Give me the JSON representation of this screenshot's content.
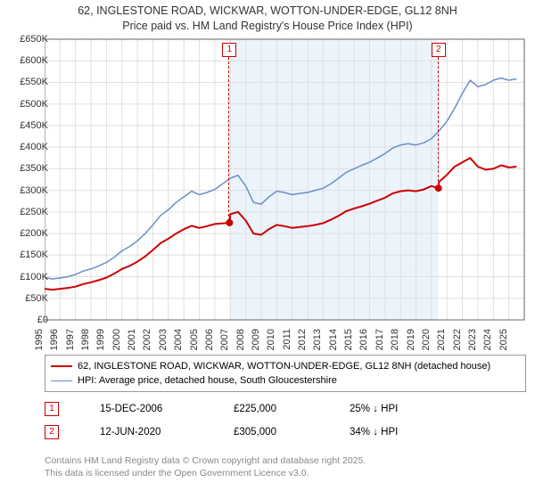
{
  "title": {
    "line1": "62, INGLESTONE ROAD, WICKWAR, WOTTON-UNDER-EDGE, GL12 8NH",
    "line2": "Price paid vs. HM Land Registry's House Price Index (HPI)"
  },
  "chart": {
    "type": "line",
    "background_color": "#ffffff",
    "grid_color": "#e0e0e0",
    "axis_color": "#666666",
    "shaded_region": {
      "x_start": 2006.95,
      "x_end": 2020.45,
      "fill": "#e6f0fa",
      "opacity": 0.8
    },
    "xlim": [
      1995,
      2026
    ],
    "ylim": [
      0,
      650000
    ],
    "xticks": [
      1995,
      1996,
      1997,
      1998,
      1999,
      2000,
      2001,
      2002,
      2003,
      2004,
      2005,
      2006,
      2007,
      2008,
      2009,
      2010,
      2011,
      2012,
      2013,
      2014,
      2015,
      2016,
      2017,
      2018,
      2019,
      2020,
      2021,
      2022,
      2023,
      2024,
      2025
    ],
    "yticks": [
      0,
      50000,
      100000,
      150000,
      200000,
      250000,
      300000,
      350000,
      400000,
      450000,
      500000,
      550000,
      600000,
      650000
    ],
    "ytick_labels": [
      "£0",
      "£50K",
      "£100K",
      "£150K",
      "£200K",
      "£250K",
      "£300K",
      "£350K",
      "£400K",
      "£450K",
      "£500K",
      "£550K",
      "£600K",
      "£650K"
    ],
    "tick_fontsize": 11,
    "series": [
      {
        "name": "hpi",
        "color": "#6a8fc9",
        "width": 1.5,
        "data": [
          [
            1995,
            98000
          ],
          [
            1995.5,
            95000
          ],
          [
            1996,
            97000
          ],
          [
            1996.5,
            100000
          ],
          [
            1997,
            105000
          ],
          [
            1997.5,
            113000
          ],
          [
            1998,
            118000
          ],
          [
            1998.5,
            125000
          ],
          [
            1999,
            133000
          ],
          [
            1999.5,
            145000
          ],
          [
            2000,
            160000
          ],
          [
            2000.5,
            170000
          ],
          [
            2001,
            183000
          ],
          [
            2001.5,
            200000
          ],
          [
            2002,
            220000
          ],
          [
            2002.5,
            242000
          ],
          [
            2003,
            255000
          ],
          [
            2003.5,
            272000
          ],
          [
            2004,
            285000
          ],
          [
            2004.5,
            298000
          ],
          [
            2005,
            290000
          ],
          [
            2005.5,
            295000
          ],
          [
            2006,
            302000
          ],
          [
            2006.5,
            315000
          ],
          [
            2007,
            328000
          ],
          [
            2007.5,
            335000
          ],
          [
            2008,
            310000
          ],
          [
            2008.5,
            272000
          ],
          [
            2009,
            268000
          ],
          [
            2009.5,
            285000
          ],
          [
            2010,
            298000
          ],
          [
            2010.5,
            295000
          ],
          [
            2011,
            290000
          ],
          [
            2011.5,
            293000
          ],
          [
            2012,
            295000
          ],
          [
            2012.5,
            300000
          ],
          [
            2013,
            305000
          ],
          [
            2013.5,
            315000
          ],
          [
            2014,
            328000
          ],
          [
            2014.5,
            342000
          ],
          [
            2015,
            350000
          ],
          [
            2015.5,
            358000
          ],
          [
            2016,
            365000
          ],
          [
            2016.5,
            375000
          ],
          [
            2017,
            385000
          ],
          [
            2017.5,
            398000
          ],
          [
            2018,
            405000
          ],
          [
            2018.5,
            408000
          ],
          [
            2019,
            405000
          ],
          [
            2019.5,
            410000
          ],
          [
            2020,
            420000
          ],
          [
            2020.5,
            438000
          ],
          [
            2021,
            460000
          ],
          [
            2021.5,
            490000
          ],
          [
            2022,
            525000
          ],
          [
            2022.5,
            555000
          ],
          [
            2023,
            540000
          ],
          [
            2023.5,
            545000
          ],
          [
            2024,
            555000
          ],
          [
            2024.5,
            560000
          ],
          [
            2025,
            555000
          ],
          [
            2025.5,
            558000
          ]
        ]
      },
      {
        "name": "property",
        "color": "#cc0000",
        "width": 2,
        "data": [
          [
            1995,
            72000
          ],
          [
            1995.5,
            70000
          ],
          [
            1996,
            72000
          ],
          [
            1996.5,
            74000
          ],
          [
            1997,
            77000
          ],
          [
            1997.5,
            83000
          ],
          [
            1998,
            87000
          ],
          [
            1998.5,
            92000
          ],
          [
            1999,
            98000
          ],
          [
            1999.5,
            107000
          ],
          [
            2000,
            118000
          ],
          [
            2000.5,
            125000
          ],
          [
            2001,
            135000
          ],
          [
            2001.5,
            147000
          ],
          [
            2002,
            162000
          ],
          [
            2002.5,
            178000
          ],
          [
            2003,
            188000
          ],
          [
            2003.5,
            200000
          ],
          [
            2004,
            210000
          ],
          [
            2004.5,
            218000
          ],
          [
            2005,
            213000
          ],
          [
            2005.5,
            217000
          ],
          [
            2006,
            222000
          ],
          [
            2006.95,
            225000
          ],
          [
            2007,
            245000
          ],
          [
            2007.5,
            250000
          ],
          [
            2008,
            230000
          ],
          [
            2008.5,
            200000
          ],
          [
            2009,
            197000
          ],
          [
            2009.5,
            210000
          ],
          [
            2010,
            220000
          ],
          [
            2010.5,
            217000
          ],
          [
            2011,
            213000
          ],
          [
            2011.5,
            215000
          ],
          [
            2012,
            217000
          ],
          [
            2012.5,
            220000
          ],
          [
            2013,
            224000
          ],
          [
            2013.5,
            232000
          ],
          [
            2014,
            241000
          ],
          [
            2014.5,
            252000
          ],
          [
            2015,
            258000
          ],
          [
            2015.5,
            263000
          ],
          [
            2016,
            269000
          ],
          [
            2016.5,
            276000
          ],
          [
            2017,
            283000
          ],
          [
            2017.5,
            293000
          ],
          [
            2018,
            298000
          ],
          [
            2018.5,
            300000
          ],
          [
            2019,
            298000
          ],
          [
            2019.5,
            302000
          ],
          [
            2020,
            310000
          ],
          [
            2020.45,
            305000
          ],
          [
            2020.5,
            320000
          ],
          [
            2021,
            336000
          ],
          [
            2021.5,
            355000
          ],
          [
            2022,
            365000
          ],
          [
            2022.5,
            375000
          ],
          [
            2023,
            355000
          ],
          [
            2023.5,
            348000
          ],
          [
            2024,
            350000
          ],
          [
            2024.5,
            358000
          ],
          [
            2025,
            353000
          ],
          [
            2025.5,
            355000
          ]
        ]
      }
    ],
    "sale_markers": [
      {
        "id": "1",
        "x": 2006.95,
        "y": 225000,
        "color": "#cc0000"
      },
      {
        "id": "2",
        "x": 2020.45,
        "y": 305000,
        "color": "#cc0000"
      }
    ]
  },
  "legend": {
    "items": [
      {
        "color": "#cc0000",
        "width": 2,
        "label": "62, INGLESTONE ROAD, WICKWAR, WOTTON-UNDER-EDGE, GL12 8NH (detached house)"
      },
      {
        "color": "#6a8fc9",
        "width": 1.5,
        "label": "HPI: Average price, detached house, South Gloucestershire"
      }
    ]
  },
  "marker_table": {
    "rows": [
      {
        "id": "1",
        "color": "#cc0000",
        "date": "15-DEC-2006",
        "price": "£225,000",
        "pct": "25% ↓ HPI"
      },
      {
        "id": "2",
        "color": "#cc0000",
        "date": "12-JUN-2020",
        "price": "£305,000",
        "pct": "34% ↓ HPI"
      }
    ]
  },
  "attribution": {
    "line1": "Contains HM Land Registry data © Crown copyright and database right 2025.",
    "line2": "This data is licensed under the Open Government Licence v3.0."
  }
}
